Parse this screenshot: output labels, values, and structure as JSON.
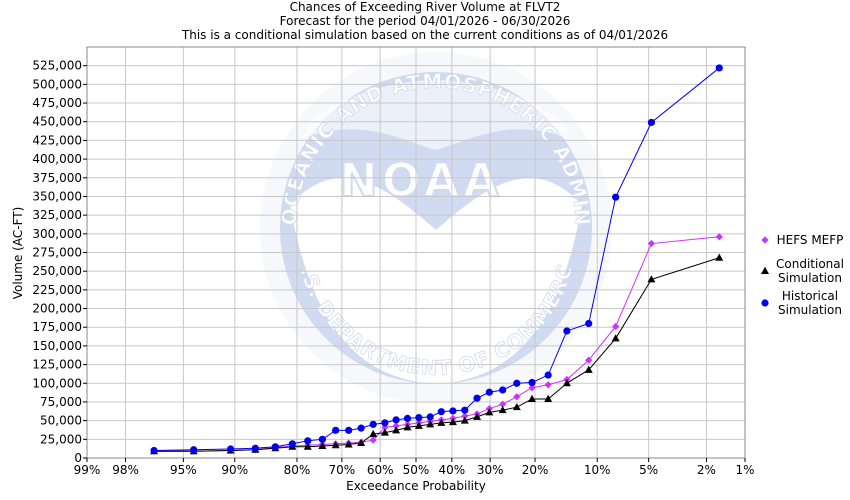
{
  "chart_data": {
    "type": "scatter",
    "title_lines": [
      "Chances of Exceeding River Volume at FLVT2",
      "Forecast for the period 04/01/2026 - 06/30/2026",
      "This is a conditional simulation based on the current conditions as of 04/01/2026"
    ],
    "xlabel": "Exceedance Probability",
    "ylabel": "Volume (AC-FT)",
    "x_scale": "normal-probability (reversed)",
    "x_ticks": [
      {
        "p": 0.99,
        "label": "99%"
      },
      {
        "p": 0.98,
        "label": "98%"
      },
      {
        "p": 0.95,
        "label": "95%"
      },
      {
        "p": 0.9,
        "label": "90%"
      },
      {
        "p": 0.8,
        "label": "80%"
      },
      {
        "p": 0.7,
        "label": "70%"
      },
      {
        "p": 0.6,
        "label": "60%"
      },
      {
        "p": 0.5,
        "label": "50%"
      },
      {
        "p": 0.4,
        "label": "40%"
      },
      {
        "p": 0.3,
        "label": "30%"
      },
      {
        "p": 0.2,
        "label": "20%"
      },
      {
        "p": 0.1,
        "label": "10%"
      },
      {
        "p": 0.05,
        "label": "5%"
      },
      {
        "p": 0.02,
        "label": "2%"
      },
      {
        "p": 0.01,
        "label": "1%"
      }
    ],
    "ylim": [
      0,
      550000
    ],
    "y_ticks": [
      0,
      25000,
      50000,
      75000,
      100000,
      125000,
      150000,
      175000,
      200000,
      225000,
      250000,
      275000,
      300000,
      325000,
      350000,
      375000,
      400000,
      425000,
      450000,
      475000,
      500000,
      525000
    ],
    "y_tick_labels": [
      "0",
      "25,000",
      "50,000",
      "75,000",
      "100,000",
      "125,000",
      "150,000",
      "175,000",
      "200,000",
      "225,000",
      "250,000",
      "275,000",
      "300,000",
      "325,000",
      "350,000",
      "375,000",
      "400,000",
      "425,000",
      "450,000",
      "475,000",
      "500,000",
      "525,000"
    ],
    "grid": true,
    "legend_position": "right",
    "series": [
      {
        "name": "HEFS MEFP",
        "color": "#cc33ff",
        "marker": "diamond",
        "points": [
          [
            0.968,
            9000
          ],
          [
            0.942,
            9000
          ],
          [
            0.905,
            10000
          ],
          [
            0.872,
            11000
          ],
          [
            0.84,
            14000
          ],
          [
            0.809,
            16000
          ],
          [
            0.778,
            17000
          ],
          [
            0.746,
            18000
          ],
          [
            0.715,
            19000
          ],
          [
            0.683,
            20000
          ],
          [
            0.651,
            21000
          ],
          [
            0.619,
            24000
          ],
          [
            0.587,
            41000
          ],
          [
            0.556,
            43000
          ],
          [
            0.524,
            45000
          ],
          [
            0.492,
            47000
          ],
          [
            0.46,
            49000
          ],
          [
            0.429,
            51000
          ],
          [
            0.397,
            53000
          ],
          [
            0.365,
            56000
          ],
          [
            0.333,
            59000
          ],
          [
            0.302,
            66000
          ],
          [
            0.27,
            72000
          ],
          [
            0.238,
            82000
          ],
          [
            0.206,
            94000
          ],
          [
            0.175,
            98000
          ],
          [
            0.143,
            105000
          ],
          [
            0.111,
            131000
          ],
          [
            0.079,
            176000
          ],
          [
            0.048,
            287000
          ],
          [
            0.016,
            296000
          ]
        ]
      },
      {
        "name": "Conditional Simulation",
        "color": "#000000",
        "marker": "triangle",
        "points": [
          [
            0.968,
            9000
          ],
          [
            0.942,
            9000
          ],
          [
            0.905,
            10000
          ],
          [
            0.872,
            11000
          ],
          [
            0.84,
            13000
          ],
          [
            0.809,
            15000
          ],
          [
            0.778,
            15000
          ],
          [
            0.746,
            16000
          ],
          [
            0.715,
            17000
          ],
          [
            0.683,
            18000
          ],
          [
            0.651,
            20000
          ],
          [
            0.619,
            32000
          ],
          [
            0.587,
            34000
          ],
          [
            0.556,
            37000
          ],
          [
            0.524,
            41000
          ],
          [
            0.492,
            43000
          ],
          [
            0.46,
            45000
          ],
          [
            0.429,
            47000
          ],
          [
            0.397,
            48000
          ],
          [
            0.365,
            50000
          ],
          [
            0.333,
            55000
          ],
          [
            0.302,
            61000
          ],
          [
            0.27,
            64000
          ],
          [
            0.238,
            68000
          ],
          [
            0.206,
            79000
          ],
          [
            0.175,
            79000
          ],
          [
            0.143,
            100000
          ],
          [
            0.111,
            118000
          ],
          [
            0.079,
            160000
          ],
          [
            0.048,
            239000
          ],
          [
            0.016,
            268000
          ]
        ]
      },
      {
        "name": "Historical Simulation",
        "color": "#0000ee",
        "marker": "circle",
        "points": [
          [
            0.968,
            10000
          ],
          [
            0.942,
            11000
          ],
          [
            0.905,
            12000
          ],
          [
            0.872,
            13000
          ],
          [
            0.84,
            15000
          ],
          [
            0.809,
            19000
          ],
          [
            0.778,
            23000
          ],
          [
            0.746,
            25000
          ],
          [
            0.715,
            37000
          ],
          [
            0.683,
            37000
          ],
          [
            0.651,
            40000
          ],
          [
            0.619,
            45000
          ],
          [
            0.587,
            47000
          ],
          [
            0.556,
            51000
          ],
          [
            0.524,
            53000
          ],
          [
            0.492,
            54000
          ],
          [
            0.46,
            55000
          ],
          [
            0.429,
            62000
          ],
          [
            0.397,
            63000
          ],
          [
            0.365,
            64000
          ],
          [
            0.333,
            80000
          ],
          [
            0.302,
            88000
          ],
          [
            0.27,
            91000
          ],
          [
            0.238,
            100000
          ],
          [
            0.206,
            101000
          ],
          [
            0.175,
            111000
          ],
          [
            0.143,
            170000
          ],
          [
            0.111,
            180000
          ],
          [
            0.079,
            349000
          ],
          [
            0.048,
            449000
          ],
          [
            0.016,
            522000
          ]
        ]
      }
    ],
    "legend": [
      {
        "series": "HEFS MEFP",
        "lines": [
          "HEFS MEFP"
        ]
      },
      {
        "series": "Conditional Simulation",
        "lines": [
          "Conditional",
          "Simulation"
        ]
      },
      {
        "series": "Historical Simulation",
        "lines": [
          "Historical",
          "Simulation"
        ]
      }
    ],
    "watermark": {
      "logo_text": "NOAA",
      "ring_text": "NATIONAL OCEANIC AND ATMOSPHERIC ADMINISTRATION",
      "bottom_text": "U.S. DEPARTMENT OF COMMERCE"
    }
  }
}
